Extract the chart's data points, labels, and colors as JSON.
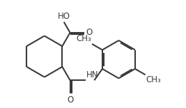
{
  "bg_color": "#ffffff",
  "line_color": "#3a3a3a",
  "text_color": "#3a3a3a",
  "line_width": 1.5,
  "font_size": 8.5,
  "figsize": [
    2.67,
    1.55
  ],
  "dpi": 100,
  "xlim": [
    0,
    10.5
  ],
  "ylim": [
    0,
    6.5
  ]
}
